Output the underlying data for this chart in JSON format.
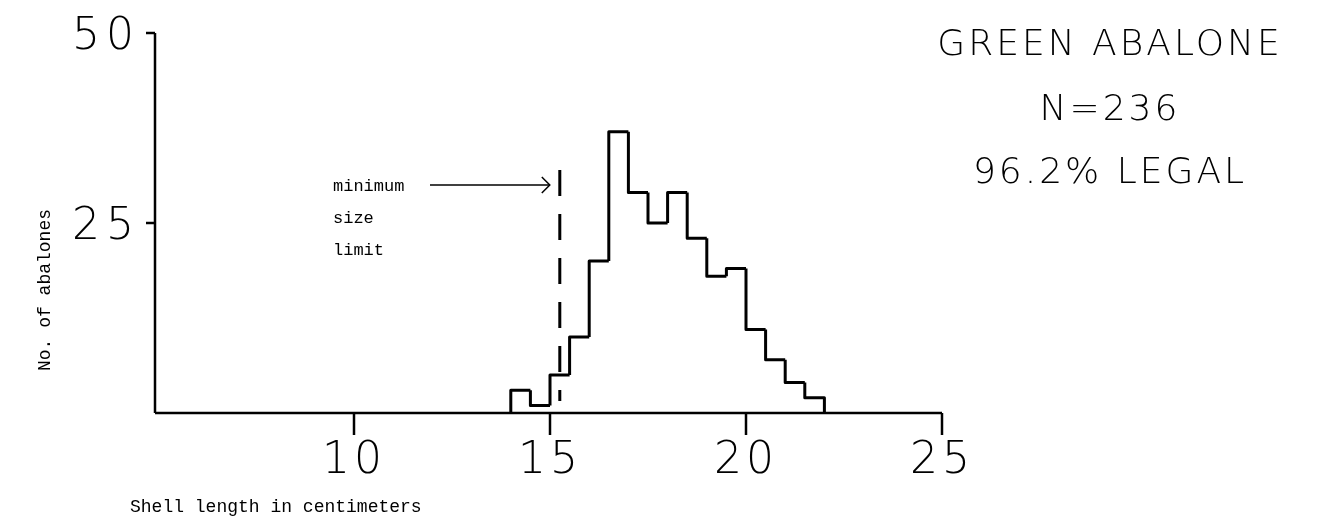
{
  "chart_data": {
    "type": "histogram",
    "title": "GREEN ABALONE",
    "xlabel": "Shell length in centimeters",
    "ylabel": "No. of abalones",
    "annotations": [
      "N=236",
      "96.2% LEGAL"
    ],
    "bins": [
      14,
      14.5,
      15,
      15.5,
      16,
      16.5,
      17,
      17.5,
      18,
      18.5,
      19,
      19.5,
      20,
      20.5,
      21,
      21.5,
      22
    ],
    "values": [
      3,
      1,
      5,
      10,
      20,
      37,
      29,
      25,
      29,
      23,
      18,
      19,
      11,
      7,
      4,
      2
    ],
    "color": "#000000",
    "xlim": [
      5,
      25
    ],
    "xticks": [
      10,
      15,
      20,
      25
    ],
    "ylim": [
      0,
      50
    ],
    "yticks": [
      25,
      50
    ],
    "ref_lines": [
      {
        "axis": "x",
        "value": 15.25,
        "label": "minimum size limit",
        "line_style": "dashed"
      }
    ],
    "grid": false
  }
}
